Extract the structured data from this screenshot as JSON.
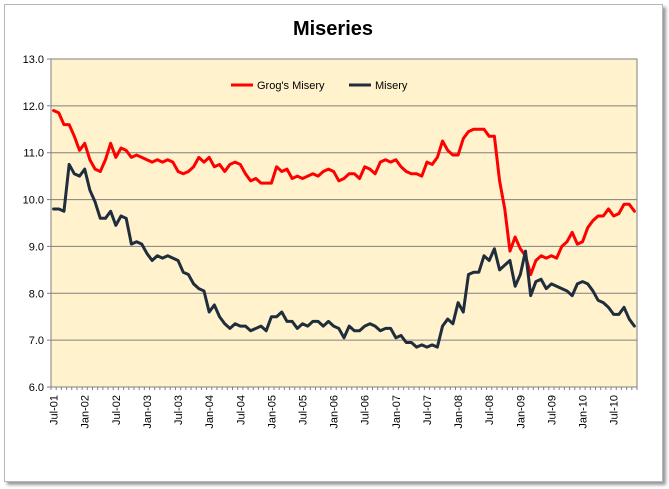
{
  "chart_data": {
    "type": "line",
    "title": "Miseries",
    "xlabel": "",
    "ylabel": "",
    "ylim": [
      6.0,
      13.0
    ],
    "yticks": [
      "6.0",
      "7.0",
      "8.0",
      "9.0",
      "10.0",
      "11.0",
      "12.0",
      "13.0"
    ],
    "ytick_values": [
      6,
      7,
      8,
      9,
      10,
      11,
      12,
      13
    ],
    "x_start": "Jul-01",
    "x_end": "Dec-10",
    "xticks": [
      {
        "label": "Jul-01",
        "month_index": 0
      },
      {
        "label": "Jan-02",
        "month_index": 6
      },
      {
        "label": "Jul-02",
        "month_index": 12
      },
      {
        "label": "Jan-03",
        "month_index": 18
      },
      {
        "label": "Jul-03",
        "month_index": 24
      },
      {
        "label": "Jan-04",
        "month_index": 30
      },
      {
        "label": "Jul-04",
        "month_index": 36
      },
      {
        "label": "Jan-05",
        "month_index": 42
      },
      {
        "label": "Jul-05",
        "month_index": 48
      },
      {
        "label": "Jan-06",
        "month_index": 54
      },
      {
        "label": "Jul-06",
        "month_index": 60
      },
      {
        "label": "Jan-07",
        "month_index": 66
      },
      {
        "label": "Jul-07",
        "month_index": 72
      },
      {
        "label": "Jan-08",
        "month_index": 78
      },
      {
        "label": "Jul-08",
        "month_index": 84
      },
      {
        "label": "Jan-09",
        "month_index": 90
      },
      {
        "label": "Jul-09",
        "month_index": 96
      },
      {
        "label": "Jan-10",
        "month_index": 102
      },
      {
        "label": "Jul-10",
        "month_index": 108
      }
    ],
    "legend_position": "top-center",
    "grid": "horizontal",
    "series": [
      {
        "name": "Grog's Misery",
        "color": "#ff0000",
        "values": [
          11.9,
          11.85,
          11.6,
          11.6,
          11.35,
          11.05,
          11.2,
          10.85,
          10.65,
          10.6,
          10.85,
          11.2,
          10.9,
          11.1,
          11.05,
          10.9,
          10.95,
          10.9,
          10.85,
          10.8,
          10.85,
          10.8,
          10.85,
          10.8,
          10.6,
          10.55,
          10.6,
          10.7,
          10.9,
          10.8,
          10.9,
          10.7,
          10.75,
          10.6,
          10.75,
          10.8,
          10.75,
          10.55,
          10.4,
          10.45,
          10.35,
          10.35,
          10.35,
          10.7,
          10.6,
          10.65,
          10.45,
          10.5,
          10.45,
          10.5,
          10.55,
          10.5,
          10.6,
          10.65,
          10.6,
          10.4,
          10.45,
          10.55,
          10.55,
          10.45,
          10.7,
          10.65,
          10.55,
          10.8,
          10.85,
          10.8,
          10.85,
          10.7,
          10.6,
          10.55,
          10.55,
          10.5,
          10.8,
          10.75,
          10.9,
          11.25,
          11.05,
          10.95,
          10.95,
          11.3,
          11.45,
          11.5,
          11.5,
          11.5,
          11.35,
          11.35,
          10.4,
          9.8,
          8.9,
          9.2,
          8.95,
          8.8,
          8.4,
          8.7,
          8.8,
          8.75,
          8.8,
          8.75,
          9.0,
          9.1,
          9.3,
          9.05,
          9.1,
          9.4,
          9.55,
          9.65,
          9.65,
          9.8,
          9.65,
          9.7,
          9.9,
          9.9,
          9.75
        ]
      },
      {
        "name": "Misery",
        "color": "#1f2d3d",
        "values": [
          9.8,
          9.8,
          9.75,
          10.75,
          10.55,
          10.5,
          10.65,
          10.2,
          9.95,
          9.6,
          9.6,
          9.75,
          9.45,
          9.65,
          9.6,
          9.05,
          9.1,
          9.05,
          8.85,
          8.7,
          8.8,
          8.75,
          8.8,
          8.75,
          8.7,
          8.45,
          8.4,
          8.2,
          8.1,
          8.05,
          7.6,
          7.75,
          7.5,
          7.35,
          7.25,
          7.35,
          7.3,
          7.3,
          7.2,
          7.25,
          7.3,
          7.2,
          7.5,
          7.5,
          7.6,
          7.4,
          7.4,
          7.25,
          7.35,
          7.3,
          7.4,
          7.4,
          7.3,
          7.4,
          7.3,
          7.25,
          7.05,
          7.3,
          7.2,
          7.2,
          7.3,
          7.35,
          7.3,
          7.2,
          7.25,
          7.25,
          7.05,
          7.1,
          6.95,
          6.95,
          6.85,
          6.9,
          6.85,
          6.9,
          6.85,
          7.3,
          7.45,
          7.35,
          7.8,
          7.6,
          8.4,
          8.45,
          8.45,
          8.8,
          8.7,
          8.95,
          8.5,
          8.6,
          8.7,
          8.15,
          8.4,
          8.9,
          7.95,
          8.25,
          8.3,
          8.1,
          8.2,
          8.15,
          8.1,
          8.05,
          7.95,
          8.2,
          8.25,
          8.2,
          8.05,
          7.85,
          7.8,
          7.7,
          7.55,
          7.55,
          7.7,
          7.45,
          7.3
        ]
      }
    ]
  }
}
